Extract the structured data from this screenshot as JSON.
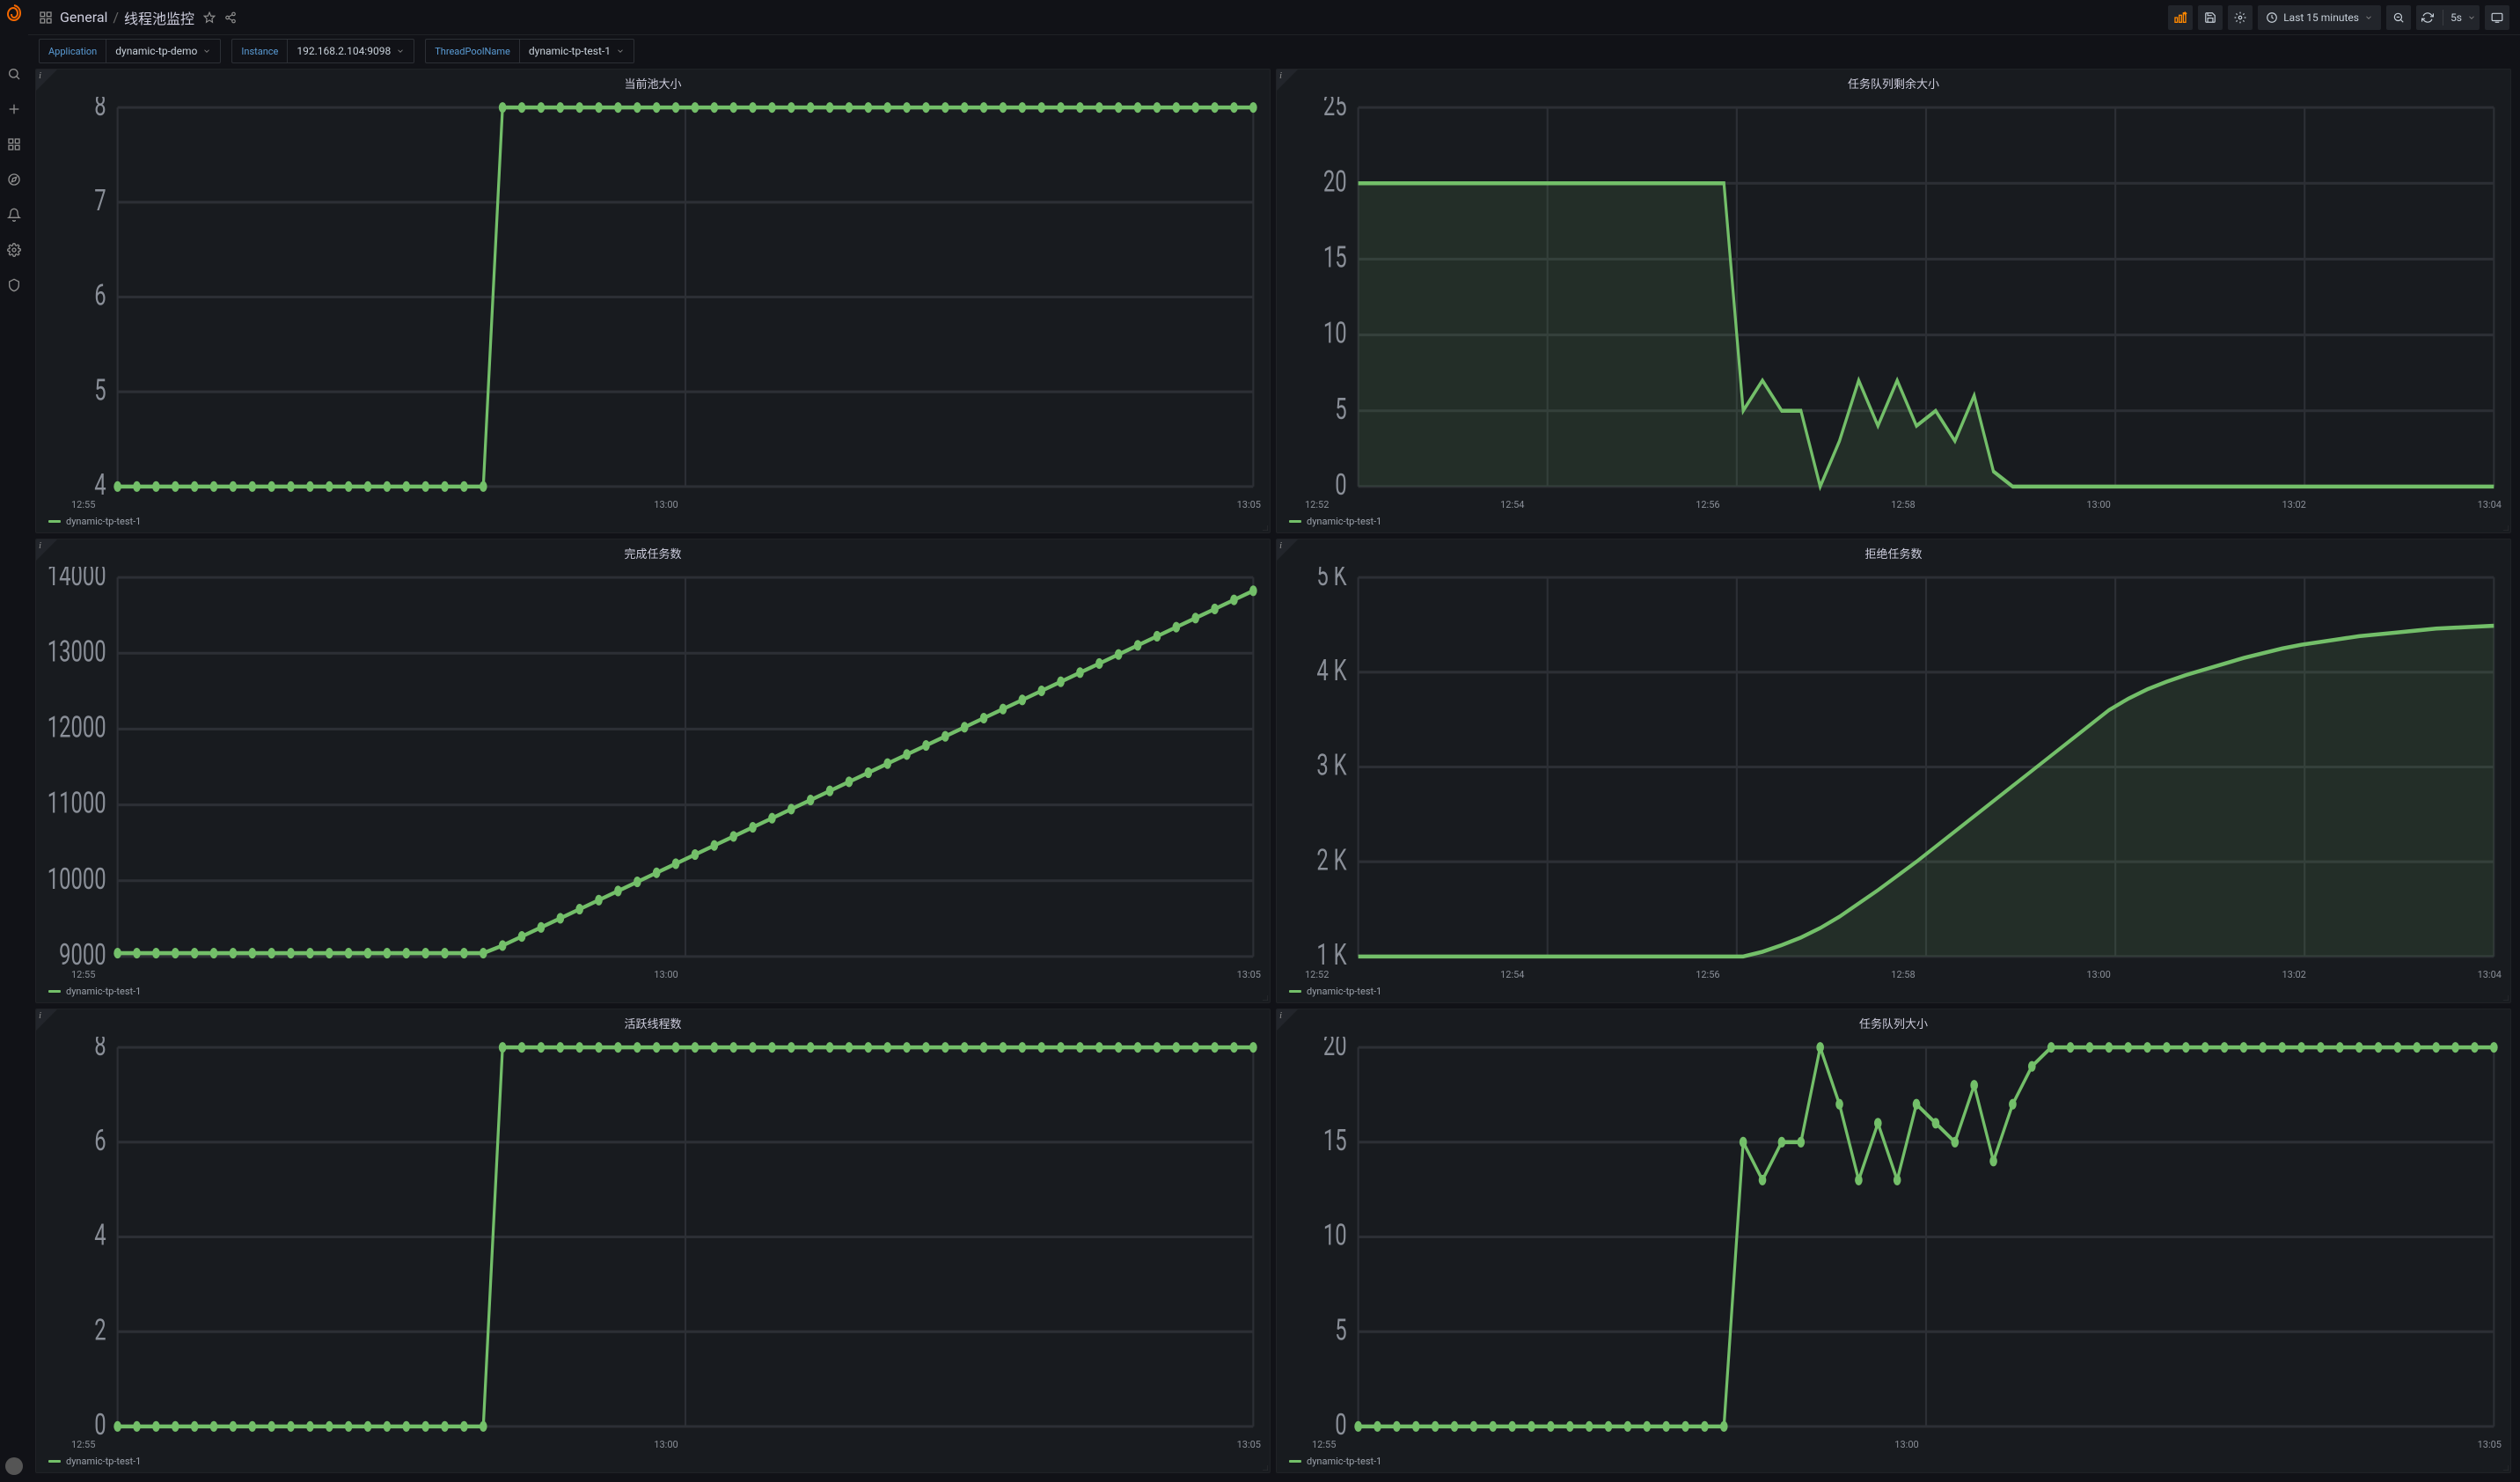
{
  "breadcrumb": {
    "root": "General",
    "title": "线程池监控"
  },
  "toolbar": {
    "time_range": "Last 15 minutes",
    "refresh_interval": "5s"
  },
  "variables": {
    "application": {
      "label": "Application",
      "value": "dynamic-tp-demo"
    },
    "instance": {
      "label": "Instance",
      "value": "192.168.2.104:9098"
    },
    "threadpool": {
      "label": "ThreadPoolName",
      "value": "dynamic-tp-test-1"
    }
  },
  "colors": {
    "panel_bg": "#181b1f",
    "grid": "#2c2f35",
    "series": "#73bf69",
    "series_fill": "rgba(115,191,105,0.12)",
    "axis_text": "#8a8f98",
    "title_text": "#ccccdc"
  },
  "panels": [
    {
      "id": "pool-size",
      "title": "当前池大小",
      "legend": "dynamic-tp-test-1",
      "type": "line-markers",
      "fill": false,
      "y_ticks": [
        "4",
        "5",
        "6",
        "7",
        "8"
      ],
      "ylim": [
        4,
        8
      ],
      "x_ticks": [
        "12:55",
        "13:00",
        "13:05"
      ],
      "values": [
        4,
        4,
        4,
        4,
        4,
        4,
        4,
        4,
        4,
        4,
        4,
        4,
        4,
        4,
        4,
        4,
        4,
        4,
        4,
        4,
        8,
        8,
        8,
        8,
        8,
        8,
        8,
        8,
        8,
        8,
        8,
        8,
        8,
        8,
        8,
        8,
        8,
        8,
        8,
        8,
        8,
        8,
        8,
        8,
        8,
        8,
        8,
        8,
        8,
        8,
        8,
        8,
        8,
        8,
        8,
        8,
        8,
        8,
        8,
        8
      ]
    },
    {
      "id": "queue-remain",
      "title": "任务队列剩余大小",
      "legend": "dynamic-tp-test-1",
      "type": "area",
      "fill": true,
      "y_ticks": [
        "0",
        "5",
        "10",
        "15",
        "20",
        "25"
      ],
      "ylim": [
        0,
        25
      ],
      "x_ticks": [
        "12:52",
        "12:54",
        "12:56",
        "12:58",
        "13:00",
        "13:02",
        "13:04"
      ],
      "values": [
        20,
        20,
        20,
        20,
        20,
        20,
        20,
        20,
        20,
        20,
        20,
        20,
        20,
        20,
        20,
        20,
        20,
        20,
        20,
        20,
        5,
        7,
        5,
        5,
        0,
        3,
        7,
        4,
        7,
        4,
        5,
        3,
        6,
        1,
        0,
        0,
        0,
        0,
        0,
        0,
        0,
        0,
        0,
        0,
        0,
        0,
        0,
        0,
        0,
        0,
        0,
        0,
        0,
        0,
        0,
        0,
        0,
        0,
        0,
        0
      ]
    },
    {
      "id": "completed",
      "title": "完成任务数",
      "legend": "dynamic-tp-test-1",
      "type": "line-markers",
      "fill": false,
      "y_ticks": [
        "9000",
        "10000",
        "11000",
        "12000",
        "13000",
        "14000"
      ],
      "ylim": [
        9000,
        14000
      ],
      "x_ticks": [
        "12:55",
        "13:00",
        "13:05"
      ],
      "values": [
        9044,
        9044,
        9044,
        9044,
        9044,
        9044,
        9044,
        9044,
        9044,
        9044,
        9044,
        9044,
        9044,
        9044,
        9044,
        9044,
        9044,
        9044,
        9044,
        9044,
        9144,
        9264,
        9384,
        9504,
        9624,
        9744,
        9864,
        9984,
        10104,
        10224,
        10344,
        10464,
        10584,
        10704,
        10824,
        10944,
        11064,
        11184,
        11304,
        11424,
        11544,
        11664,
        11784,
        11904,
        12024,
        12144,
        12264,
        12384,
        12504,
        12624,
        12744,
        12864,
        12984,
        13104,
        13224,
        13344,
        13464,
        13584,
        13704,
        13824
      ]
    },
    {
      "id": "rejected",
      "title": "拒绝任务数",
      "legend": "dynamic-tp-test-1",
      "type": "area",
      "fill": true,
      "y_ticks": [
        "1 K",
        "2 K",
        "3 K",
        "4 K",
        "5 K"
      ],
      "ylim": [
        1000,
        5000
      ],
      "x_ticks": [
        "12:52",
        "12:54",
        "12:56",
        "12:58",
        "13:00",
        "13:02",
        "13:04"
      ],
      "values": [
        1000,
        1000,
        1000,
        1000,
        1000,
        1000,
        1000,
        1000,
        1000,
        1000,
        1000,
        1000,
        1000,
        1000,
        1000,
        1000,
        1000,
        1000,
        1000,
        1000,
        1000,
        1050,
        1120,
        1200,
        1300,
        1420,
        1560,
        1700,
        1850,
        2000,
        2160,
        2320,
        2480,
        2640,
        2800,
        2960,
        3120,
        3280,
        3440,
        3600,
        3720,
        3820,
        3900,
        3970,
        4030,
        4090,
        4150,
        4200,
        4250,
        4290,
        4320,
        4350,
        4380,
        4400,
        4420,
        4440,
        4460,
        4470,
        4480,
        4490
      ]
    },
    {
      "id": "active",
      "title": "活跃线程数",
      "legend": "dynamic-tp-test-1",
      "type": "line-markers",
      "fill": false,
      "y_ticks": [
        "0",
        "2",
        "4",
        "6",
        "8"
      ],
      "ylim": [
        0,
        8
      ],
      "x_ticks": [
        "12:55",
        "13:00",
        "13:05"
      ],
      "values": [
        0,
        0,
        0,
        0,
        0,
        0,
        0,
        0,
        0,
        0,
        0,
        0,
        0,
        0,
        0,
        0,
        0,
        0,
        0,
        0,
        8,
        8,
        8,
        8,
        8,
        8,
        8,
        8,
        8,
        8,
        8,
        8,
        8,
        8,
        8,
        8,
        8,
        8,
        8,
        8,
        8,
        8,
        8,
        8,
        8,
        8,
        8,
        8,
        8,
        8,
        8,
        8,
        8,
        8,
        8,
        8,
        8,
        8,
        8,
        8
      ]
    },
    {
      "id": "queue-size",
      "title": "任务队列大小",
      "legend": "dynamic-tp-test-1",
      "type": "line-markers",
      "fill": false,
      "y_ticks": [
        "0",
        "5",
        "10",
        "15",
        "20"
      ],
      "ylim": [
        0,
        20
      ],
      "x_ticks": [
        "12:55",
        "13:00",
        "13:05"
      ],
      "values": [
        0,
        0,
        0,
        0,
        0,
        0,
        0,
        0,
        0,
        0,
        0,
        0,
        0,
        0,
        0,
        0,
        0,
        0,
        0,
        0,
        15,
        13,
        15,
        15,
        20,
        17,
        13,
        16,
        13,
        17,
        16,
        15,
        18,
        14,
        17,
        19,
        20,
        20,
        20,
        20,
        20,
        20,
        20,
        20,
        20,
        20,
        20,
        20,
        20,
        20,
        20,
        20,
        20,
        20,
        20,
        20,
        20,
        20,
        20,
        20
      ]
    }
  ]
}
